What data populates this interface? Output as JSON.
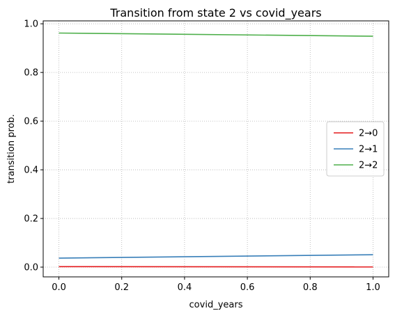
{
  "chart_data": {
    "type": "line",
    "title": "Transition from state 2 vs covid_years",
    "xlabel": "covid_years",
    "ylabel": "transition prob.",
    "xlim": [
      -0.05,
      1.05
    ],
    "ylim": [
      -0.04,
      1.012
    ],
    "xticks": [
      0.0,
      0.2,
      0.4,
      0.6,
      0.8,
      1.0
    ],
    "xtick_labels": [
      "0.0",
      "0.2",
      "0.4",
      "0.6",
      "0.8",
      "1.0"
    ],
    "yticks": [
      0.0,
      0.2,
      0.4,
      0.6,
      0.8,
      1.0
    ],
    "ytick_labels": [
      "0.0",
      "0.2",
      "0.4",
      "0.6",
      "0.8",
      "1.0"
    ],
    "grid": true,
    "legend_position": "center-right",
    "series": [
      {
        "name": "2→0",
        "color": "#e41a1c",
        "x": [
          0.0,
          1.0
        ],
        "y": [
          0.002,
          0.001
        ]
      },
      {
        "name": "2→1",
        "color": "#377eb8",
        "x": [
          0.0,
          1.0
        ],
        "y": [
          0.037,
          0.051
        ]
      },
      {
        "name": "2→2",
        "color": "#4daf4a",
        "x": [
          0.0,
          1.0
        ],
        "y": [
          0.962,
          0.949
        ]
      }
    ]
  }
}
